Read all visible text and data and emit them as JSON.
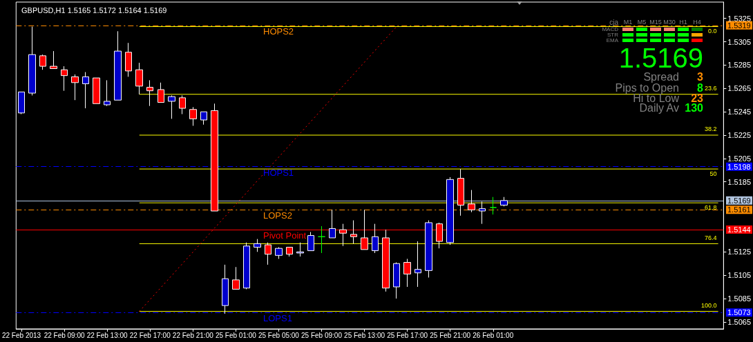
{
  "chart_data": {
    "type": "candlestick",
    "title": "GBPUSD,H1 1.5165 1.5172 1.5164 1.5169",
    "categories": [
      "22 Feb 2013",
      null,
      null,
      null,
      "22 Feb 09:00",
      null,
      null,
      null,
      "22 Feb 13:00",
      null,
      null,
      null,
      "22 Feb 17:00",
      null,
      null,
      null,
      "22 Feb 21:00",
      null,
      null,
      null,
      "25 Feb 01:00",
      null,
      null,
      null,
      "25 Feb 05:00",
      null,
      null,
      null,
      "25 Feb 09:00",
      null,
      null,
      null,
      "25 Feb 13:00",
      null,
      null,
      null,
      "25 Feb 17:00",
      null,
      null,
      null,
      "25 Feb 21:00",
      null,
      null,
      null,
      "26 Feb 01:00",
      null,
      null,
      null,
      null,
      null,
      null,
      null,
      null,
      null,
      null,
      null,
      null,
      null,
      null,
      null,
      null,
      null,
      null,
      null,
      null,
      null
    ],
    "ohlc": [
      [
        1.5244,
        1.5262,
        1.5243,
        1.5262
      ],
      [
        1.5261,
        1.5318,
        1.5259,
        1.5294
      ],
      [
        1.5293,
        1.5294,
        1.5281,
        1.5284
      ],
      [
        1.5284,
        1.5297,
        1.5282,
        1.5282
      ],
      [
        1.5281,
        1.5284,
        1.5263,
        1.5276
      ],
      [
        1.5275,
        1.5277,
        1.5255,
        1.527
      ],
      [
        1.5269,
        1.5279,
        1.5248,
        1.5275
      ],
      [
        1.5274,
        1.5274,
        1.5252,
        1.5252
      ],
      [
        1.5251,
        1.5272,
        1.525,
        1.5254
      ],
      [
        1.5255,
        1.5314,
        1.5255,
        1.5297
      ],
      [
        1.5296,
        1.5304,
        1.5275,
        1.528
      ],
      [
        1.5281,
        1.5287,
        1.526,
        1.5267
      ],
      [
        1.5266,
        1.5272,
        1.525,
        1.5263
      ],
      [
        1.5264,
        1.527,
        1.5253,
        1.5253
      ],
      [
        1.5254,
        1.5259,
        1.5239,
        1.5258
      ],
      [
        1.5257,
        1.5259,
        1.5243,
        1.5248
      ],
      [
        1.5247,
        1.5249,
        1.5233,
        1.5239
      ],
      [
        1.5238,
        1.5245,
        1.5234,
        1.5245
      ],
      [
        1.5246,
        1.5252,
        1.516,
        1.516
      ],
      [
        1.5079,
        1.5114,
        1.5072,
        1.5102
      ],
      [
        1.5101,
        1.5112,
        1.5093,
        1.5093
      ],
      [
        1.5094,
        1.5133,
        1.5093,
        1.513
      ],
      [
        1.5129,
        1.5136,
        1.5125,
        1.5132
      ],
      [
        1.5131,
        1.5133,
        1.5114,
        1.5123
      ],
      [
        1.5122,
        1.5129,
        1.5119,
        1.5128
      ],
      [
        1.5129,
        1.5129,
        1.5121,
        1.5123
      ],
      [
        1.5124,
        1.5133,
        1.5121,
        1.5125
      ],
      [
        1.5126,
        1.5142,
        1.5126,
        1.5139
      ],
      [
        1.5138,
        1.5147,
        1.5124,
        1.5138
      ],
      [
        1.5137,
        1.5161,
        1.5137,
        1.5145
      ],
      [
        1.5144,
        1.5149,
        1.513,
        1.5141
      ],
      [
        1.514,
        1.5152,
        1.5132,
        1.5138
      ],
      [
        1.5137,
        1.5161,
        1.5127,
        1.5127
      ],
      [
        1.5126,
        1.5149,
        1.5124,
        1.5138
      ],
      [
        1.5137,
        1.5144,
        1.5091,
        1.5094
      ],
      [
        1.5095,
        1.5116,
        1.5085,
        1.5115
      ],
      [
        1.5116,
        1.5119,
        1.5095,
        1.5106
      ],
      [
        1.5107,
        1.5134,
        1.5095,
        1.511
      ],
      [
        1.5109,
        1.5152,
        1.5103,
        1.515
      ],
      [
        1.5149,
        1.515,
        1.5128,
        1.5134
      ],
      [
        1.5133,
        1.5189,
        1.5131,
        1.5187
      ],
      [
        1.5188,
        1.5196,
        1.5156,
        1.5165
      ],
      [
        1.5166,
        1.5178,
        1.5159,
        1.5161
      ],
      [
        1.516,
        1.5168,
        1.5149,
        1.5162
      ],
      [
        1.5163,
        1.5172,
        1.5157,
        1.5163
      ],
      [
        1.5165,
        1.5172,
        1.5164,
        1.5169
      ],
      null,
      null,
      null,
      null,
      null,
      null,
      null,
      null,
      null,
      null,
      null,
      null,
      null,
      null,
      null,
      null,
      null,
      null,
      null,
      null
    ],
    "colors": [
      "#0000cc",
      "#0000cc",
      "#ff0000",
      "#ff0000",
      "#ff0000",
      "#ff0000",
      "#0000cc",
      "#ff0000",
      "#0000cc",
      "#0000cc",
      "#ff0000",
      "#ff0000",
      "#ff0000",
      "#ff0000",
      "#0000cc",
      "#ff0000",
      "#ff0000",
      "#0000cc",
      "#ff0000",
      "#0000cc",
      "#ff0000",
      "#0000cc",
      "#0000cc",
      "#ff0000",
      "#0000cc",
      "#ff0000",
      "#0000cc",
      "#0000cc",
      "#00ff00",
      "#0000cc",
      "#ff0000",
      "#ff0000",
      "#ff0000",
      "#0000cc",
      "#ff0000",
      "#0000cc",
      "#ff0000",
      "#0000cc",
      "#0000cc",
      "#ff0000",
      "#0000cc",
      "#ff0000",
      "#ff0000",
      "#0000cc",
      "#00ff00",
      "#0000cc",
      null,
      null,
      null,
      null,
      null,
      null,
      null,
      null,
      null,
      null,
      null,
      null,
      null,
      null,
      null,
      null,
      null,
      null,
      null,
      null
    ],
    "series": [
      {
        "type": "line",
        "name": "0.0",
        "color": "#ffff00",
        "line_style": "solid",
        "values": [
          null,
          null,
          null,
          null,
          null,
          null,
          null,
          null,
          null,
          null,
          null,
          1.5318,
          null,
          null,
          null,
          null,
          null,
          null,
          null,
          null,
          null,
          null,
          null,
          null,
          null,
          null,
          null,
          null,
          null,
          null,
          null,
          null,
          null,
          null,
          null,
          null,
          null,
          null,
          null,
          null,
          null,
          null,
          null,
          null,
          null,
          null,
          null,
          null,
          null,
          null,
          null,
          null,
          null,
          null,
          null,
          null,
          null,
          null,
          null,
          null,
          null,
          null,
          null,
          null,
          null,
          1.5318
        ]
      },
      {
        "type": "line",
        "name": "23.6",
        "color": "#ffff00",
        "line_style": "solid",
        "values": [
          null,
          null,
          null,
          null,
          null,
          null,
          null,
          null,
          null,
          null,
          null,
          1.526,
          null,
          null,
          null,
          null,
          null,
          null,
          null,
          null,
          null,
          null,
          null,
          null,
          null,
          null,
          null,
          null,
          null,
          null,
          null,
          null,
          null,
          null,
          null,
          null,
          null,
          null,
          null,
          null,
          null,
          null,
          null,
          null,
          null,
          null,
          null,
          null,
          null,
          null,
          null,
          null,
          null,
          null,
          null,
          null,
          null,
          null,
          null,
          null,
          null,
          null,
          null,
          null,
          null,
          1.526
        ]
      },
      {
        "type": "line",
        "name": "38.2",
        "color": "#ffff00",
        "line_style": "solid",
        "values": [
          null,
          null,
          null,
          null,
          null,
          null,
          null,
          null,
          null,
          null,
          null,
          1.5225,
          null,
          null,
          null,
          null,
          null,
          null,
          null,
          null,
          null,
          null,
          null,
          null,
          null,
          null,
          null,
          null,
          null,
          null,
          null,
          null,
          null,
          null,
          null,
          null,
          null,
          null,
          null,
          null,
          null,
          null,
          null,
          null,
          null,
          null,
          null,
          null,
          null,
          null,
          null,
          null,
          null,
          null,
          null,
          null,
          null,
          null,
          null,
          null,
          null,
          null,
          null,
          null,
          null,
          1.5225
        ]
      },
      {
        "type": "line",
        "name": "50",
        "color": "#ffff00",
        "line_style": "solid",
        "values": [
          null,
          null,
          null,
          null,
          null,
          null,
          null,
          null,
          null,
          null,
          null,
          1.5196,
          null,
          null,
          null,
          null,
          null,
          null,
          null,
          null,
          null,
          null,
          null,
          null,
          null,
          null,
          null,
          null,
          null,
          null,
          null,
          null,
          null,
          null,
          null,
          null,
          null,
          null,
          null,
          null,
          null,
          null,
          null,
          null,
          null,
          null,
          null,
          null,
          null,
          null,
          null,
          null,
          null,
          null,
          null,
          null,
          null,
          null,
          null,
          null,
          null,
          null,
          null,
          null,
          null,
          1.5196
        ]
      },
      {
        "type": "line",
        "name": "61.8",
        "color": "#ffff00",
        "line_style": "solid",
        "values": [
          null,
          null,
          null,
          null,
          null,
          null,
          null,
          null,
          null,
          null,
          null,
          1.5167,
          null,
          null,
          null,
          null,
          null,
          null,
          null,
          null,
          null,
          null,
          null,
          null,
          null,
          null,
          null,
          null,
          null,
          null,
          null,
          null,
          null,
          null,
          null,
          null,
          null,
          null,
          null,
          null,
          null,
          null,
          null,
          null,
          null,
          null,
          null,
          null,
          null,
          null,
          null,
          null,
          null,
          null,
          null,
          null,
          null,
          null,
          null,
          null,
          null,
          null,
          null,
          null,
          null,
          1.5167
        ]
      },
      {
        "type": "line",
        "name": "76.4",
        "color": "#ffff00",
        "line_style": "solid",
        "values": [
          null,
          null,
          null,
          null,
          null,
          null,
          null,
          null,
          null,
          null,
          null,
          1.5132,
          null,
          null,
          null,
          null,
          null,
          null,
          null,
          null,
          null,
          null,
          null,
          null,
          null,
          null,
          null,
          null,
          null,
          null,
          null,
          null,
          null,
          null,
          null,
          null,
          null,
          null,
          null,
          null,
          null,
          null,
          null,
          null,
          null,
          null,
          null,
          null,
          null,
          null,
          null,
          null,
          null,
          null,
          null,
          null,
          null,
          null,
          null,
          null,
          null,
          null,
          null,
          null,
          null,
          1.5132
        ]
      },
      {
        "type": "line",
        "name": "100.0",
        "color": "#ffff00",
        "line_style": "solid",
        "values": [
          null,
          null,
          null,
          null,
          null,
          null,
          null,
          null,
          null,
          null,
          null,
          1.5074,
          null,
          null,
          null,
          null,
          null,
          null,
          null,
          null,
          null,
          null,
          null,
          null,
          null,
          null,
          null,
          null,
          null,
          null,
          null,
          null,
          null,
          null,
          null,
          null,
          null,
          null,
          null,
          null,
          null,
          null,
          null,
          null,
          null,
          null,
          null,
          null,
          null,
          null,
          null,
          null,
          null,
          null,
          null,
          null,
          null,
          null,
          null,
          null,
          null,
          null,
          null,
          null,
          null,
          1.5074
        ]
      },
      {
        "type": "line",
        "color": "#ff0000",
        "line_style": "dotted",
        "values": [
          null,
          null,
          null,
          null,
          null,
          null,
          null,
          null,
          null,
          null,
          null,
          1.5074,
          null,
          null,
          null,
          null,
          null,
          null,
          null,
          null,
          null,
          null,
          null,
          null,
          null,
          null,
          null,
          null,
          null,
          null,
          null,
          null,
          null,
          null,
          null,
          1.5318,
          null,
          null,
          null,
          null,
          null,
          null,
          null,
          null,
          null,
          null,
          null,
          null,
          null,
          null,
          null,
          null,
          null,
          null,
          null,
          null,
          null,
          null,
          null,
          null,
          null,
          null,
          null,
          null,
          null,
          null
        ]
      }
    ],
    "ref_lines": [
      {
        "axis": "y",
        "value": 1.5319,
        "label": "1.5319",
        "color": "#ff8c00",
        "line_style": "dashed"
      },
      {
        "axis": "y",
        "value": 1.5198,
        "label": "1.5198",
        "color": "#0000ff",
        "line_style": "dashed"
      },
      {
        "axis": "y",
        "value": 1.5169,
        "label": "1.5169",
        "color": "#b0c4de",
        "line_style": "solid"
      },
      {
        "axis": "y",
        "value": 1.5161,
        "label": "1.5161",
        "color": "#ff8c00",
        "line_style": "dashed"
      },
      {
        "axis": "y",
        "value": 1.5144,
        "label": "1.5144",
        "color": "#ff0000",
        "line_style": "solid"
      },
      {
        "axis": "y",
        "value": 1.5073,
        "label": "1.5073",
        "color": "#0000ff",
        "line_style": "dashed"
      }
    ],
    "annotations": [
      "cja",
      "M1",
      "M5",
      "M15",
      "M30",
      "H1",
      "H4",
      "MACD",
      "STR",
      "EMA",
      "1.5169",
      "Spread",
      "3",
      "Pips to Open",
      "8",
      "Hi to Low",
      "23",
      "Daily Av",
      "130",
      {
        "text": "HOPS2",
        "y": 1.5319
      },
      {
        "text": "HOPS1",
        "y": 1.5198
      },
      {
        "text": "LOPS2",
        "y": 1.5161
      },
      {
        "text": "Pivot Point",
        "y": 1.5144
      },
      {
        "text": "LOPS1",
        "y": 1.5073
      }
    ],
    "ylim": [
      1.5059,
      1.5339
    ],
    "yticks": [
      1.5065,
      1.5085,
      1.5105,
      1.5125,
      1.5185,
      1.5205,
      1.5225,
      1.5245,
      1.5265,
      1.5285,
      1.5305,
      1.5325
    ],
    "grid": false,
    "marker": "none"
  }
}
